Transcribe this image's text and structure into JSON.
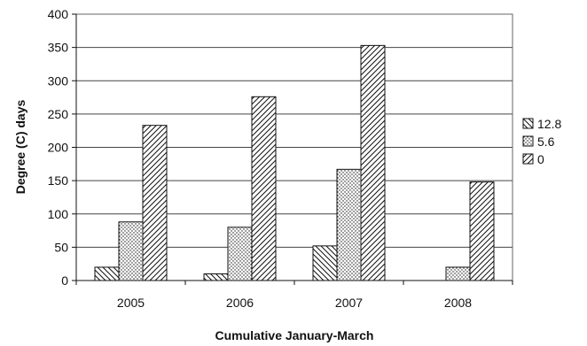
{
  "chart_data": {
    "type": "bar",
    "title": "",
    "xlabel": "Cumulative January-March",
    "ylabel": "Degree (C) days",
    "categories": [
      "2005",
      "2006",
      "2007",
      "2008"
    ],
    "ylim": [
      0,
      400
    ],
    "yticks": [
      0,
      50,
      100,
      150,
      200,
      250,
      300,
      350,
      400
    ],
    "grid": true,
    "legend_position": "right",
    "series": [
      {
        "name": "12.8",
        "values": [
          20,
          10,
          52,
          0
        ],
        "pattern": "back-diagonal"
      },
      {
        "name": "5.6",
        "values": [
          88,
          80,
          167,
          20
        ],
        "pattern": "dots"
      },
      {
        "name": "0",
        "values": [
          233,
          276,
          353,
          148
        ],
        "pattern": "forward-diagonal"
      }
    ],
    "colors": {
      "stroke": "#111111",
      "grid": "#444444",
      "fill": "#ffffff"
    }
  }
}
